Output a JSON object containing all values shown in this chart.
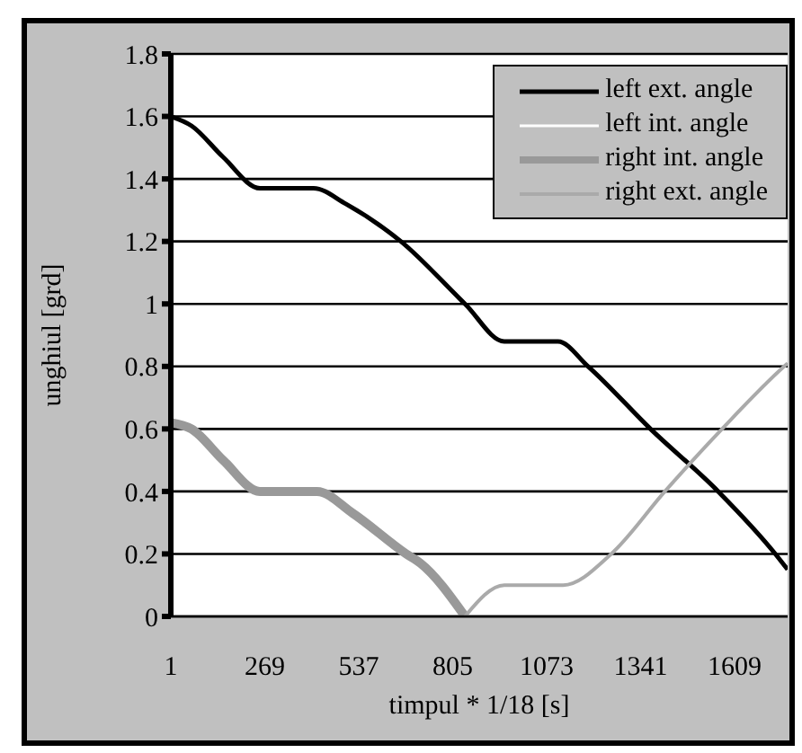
{
  "chart_data": {
    "type": "line",
    "xlabel": "timpul * 1/18 [s]",
    "ylabel": "unghiul [grd]",
    "xlim": [
      1,
      1760
    ],
    "xticks": [
      1,
      269,
      537,
      805,
      1073,
      1341,
      1609
    ],
    "ylim": [
      0,
      1.8
    ],
    "yticks": [
      0,
      0.2,
      0.4,
      0.6,
      0.8,
      1,
      1.2,
      1.4,
      1.6,
      1.8
    ],
    "grid": "y",
    "legend": "top right",
    "marker": "none",
    "line_style": "solid",
    "series": [
      {
        "name": "left ext. angle",
        "color": "#000000",
        "x": [
          1,
          60,
          150,
          255,
          408,
          500,
          657,
          840,
          952,
          1105,
          1191,
          1369,
          1562,
          1725,
          1760
        ],
        "values": [
          1.6,
          1.57,
          1.47,
          1.37,
          1.37,
          1.32,
          1.2,
          1.0,
          0.88,
          0.88,
          0.8,
          0.6,
          0.4,
          0.2,
          0.15
        ]
      },
      {
        "name": "left int. angle",
        "color": "#ffffff"
      },
      {
        "name": "right int. angle",
        "color": "#999999",
        "x": [
          1,
          60,
          150,
          255,
          418,
          520,
          672,
          713,
          840
        ],
        "values": [
          0.62,
          0.6,
          0.5,
          0.4,
          0.4,
          0.33,
          0.2,
          0.17,
          0
        ]
      },
      {
        "name": "right ext. angle",
        "color": "#aaaaaa",
        "x": [
          840,
          952,
          1120,
          1257,
          1410,
          1573,
          1750,
          1760
        ],
        "values": [
          0,
          0.1,
          0.1,
          0.2,
          0.4,
          0.6,
          0.8,
          0.81
        ]
      }
    ]
  }
}
